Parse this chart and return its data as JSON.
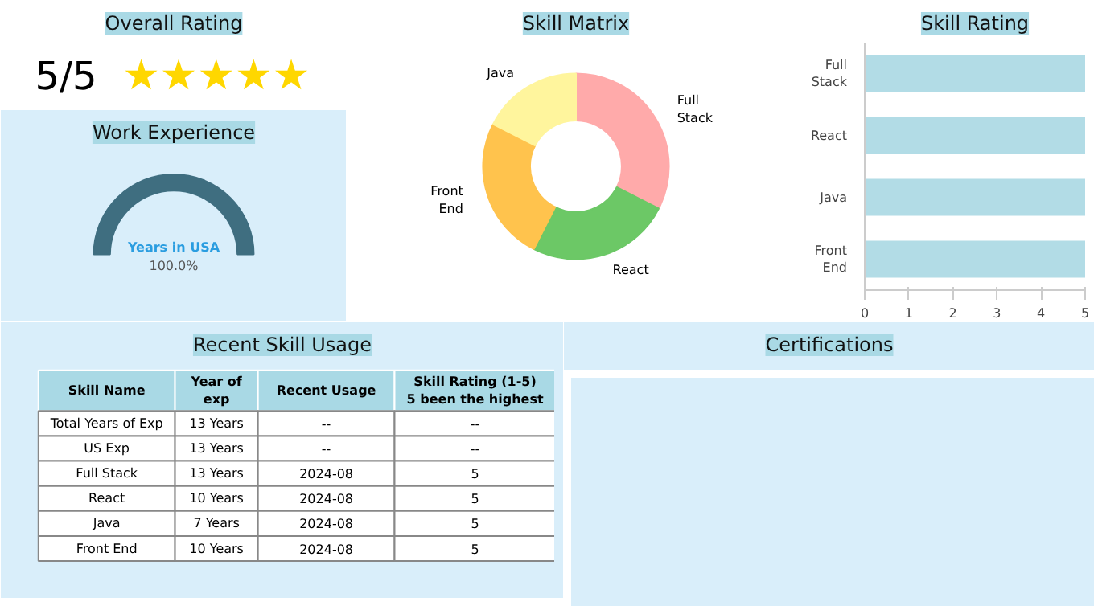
{
  "chart_data": [
    {
      "type": "other",
      "title": "Overall Rating",
      "annotations": [
        "5/5",
        "★★★★★"
      ],
      "color": "#ffd700"
    },
    {
      "type": "pie",
      "title": "Work Experience",
      "categories": [
        "Years in USA"
      ],
      "values": [
        100
      ],
      "value_labels": [
        "100.0%"
      ],
      "colors": [
        "#3f6e80"
      ]
    },
    {
      "type": "donut",
      "title": "Skill Matrix",
      "categories": [
        "Full Stack",
        "React",
        "Front End",
        "Java"
      ],
      "values": [
        32.5,
        25,
        25,
        17.5
      ],
      "colors": [
        "#ffaaaa",
        "#6cc866",
        "#ffc34d",
        "#fff59d"
      ]
    },
    {
      "type": "bar",
      "title": "Skill Rating",
      "orientation": "horizontal",
      "categories": [
        "Full Stack",
        "React",
        "Java",
        "Front End"
      ],
      "values": [
        5,
        5,
        5,
        5
      ],
      "color": "#b2dce6",
      "xlim": [
        0,
        5
      ],
      "xticks": [
        0,
        1,
        2,
        3,
        4,
        5
      ],
      "grid": false,
      "legend": false
    },
    {
      "type": "other",
      "title": "Recent Skill Usage",
      "categories": [
        "Skill Name",
        "Year of exp",
        "Recent Usage",
        "Skill Rating (1-5) 5 been the highest"
      ],
      "cells": [
        [
          "Total Years of Exp",
          "13 Years",
          "--",
          "--"
        ],
        [
          "US Exp",
          "13 Years",
          "--",
          "--"
        ],
        [
          "Full Stack",
          "13 Years",
          "2024-08",
          "5"
        ],
        [
          "React",
          "10 Years",
          "2024-08",
          "5"
        ],
        [
          "Java",
          "7 Years",
          "2024-08",
          "5"
        ],
        [
          "Front End",
          "10 Years",
          "2024-08",
          "5"
        ]
      ]
    },
    {
      "type": "other",
      "title": "Certifications"
    }
  ]
}
